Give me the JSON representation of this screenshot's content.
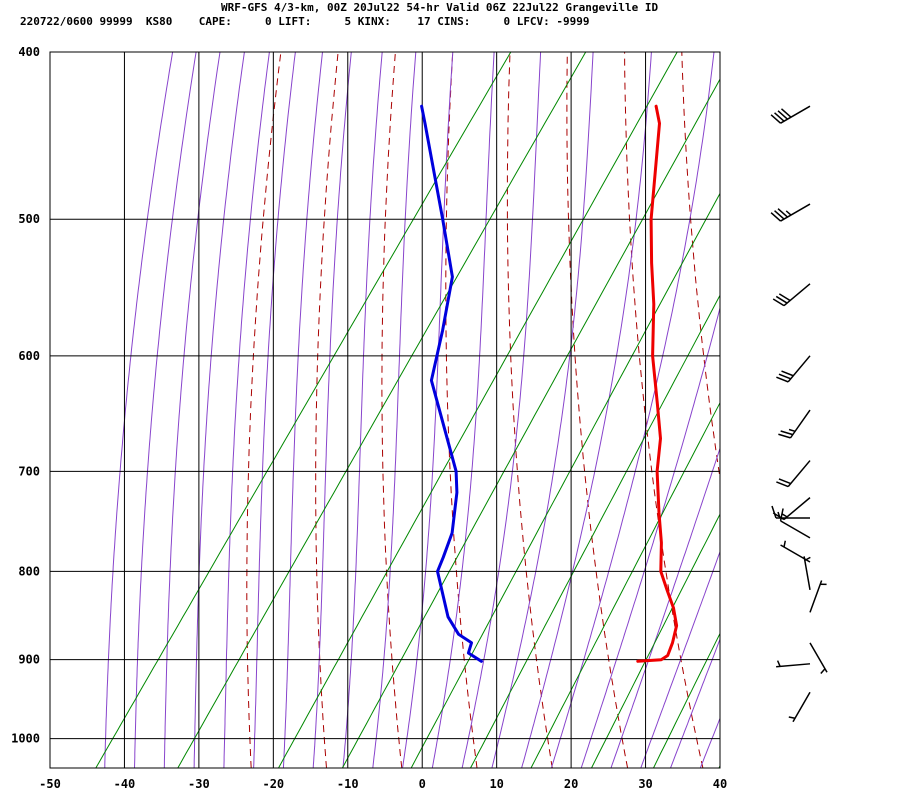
{
  "header": {
    "title": "WRF-GFS 4/3-km, 00Z 20Jul22 54-hr Valid 06Z 22Jul22 Grangeville ID",
    "stats": "220722/0600 99999  KS80    CAPE:     0 LIFT:     5 KINX:    17 CINS:     0 LFCV: -9999"
  },
  "chart_data": {
    "type": "line",
    "title": "WRF-GFS 4/3-km, 00Z 20Jul22 54-hr Valid 06Z 22Jul22 Grangeville ID",
    "xlabel": "",
    "ylabel": "",
    "x_ticks": [
      "-50",
      "-40",
      "-30",
      "-20",
      "-10",
      "0",
      "10",
      "20",
      "30",
      "40"
    ],
    "y_ticks": [
      "400",
      "500",
      "600",
      "700",
      "800",
      "900",
      "1000"
    ],
    "xlim": [
      -50,
      40
    ],
    "ylim_pressure": [
      1040,
      400
    ],
    "y_scale": "log-pressure",
    "skew": "isotherms skewed to the right with height",
    "grid": true,
    "colors": {
      "temperature": "#ee0000",
      "dewpoint": "#0000dd",
      "dry_adiabat": "#aa0000",
      "moist_adiabat": "#8844cc",
      "mixing_ratio": "#008800",
      "grid": "#000000",
      "wind": "#000000"
    },
    "series": [
      {
        "key": "temperature",
        "points": [
          {
            "p": 902,
            "t": 22.0
          },
          {
            "p": 900,
            "t": 25.0
          },
          {
            "p": 895,
            "t": 25.5
          },
          {
            "p": 880,
            "t": 25.0
          },
          {
            "p": 860,
            "t": 24.0
          },
          {
            "p": 840,
            "t": 22.0
          },
          {
            "p": 820,
            "t": 19.5
          },
          {
            "p": 800,
            "t": 17.0
          },
          {
            "p": 770,
            "t": 14.5
          },
          {
            "p": 740,
            "t": 11.5
          },
          {
            "p": 700,
            "t": 7.5
          },
          {
            "p": 670,
            "t": 5.0
          },
          {
            "p": 640,
            "t": 1.5
          },
          {
            "p": 600,
            "t": -3.5
          },
          {
            "p": 560,
            "t": -8.0
          },
          {
            "p": 530,
            "t": -12.0
          },
          {
            "p": 500,
            "t": -16.0
          },
          {
            "p": 440,
            "t": -23.5
          },
          {
            "p": 430,
            "t": -25.5
          }
        ]
      },
      {
        "key": "dewpoint",
        "points": [
          {
            "p": 902,
            "t": 1.0
          },
          {
            "p": 892,
            "t": -1.5
          },
          {
            "p": 880,
            "t": -2.0
          },
          {
            "p": 870,
            "t": -4.5
          },
          {
            "p": 850,
            "t": -7.5
          },
          {
            "p": 800,
            "t": -13.0
          },
          {
            "p": 785,
            "t": -13.5
          },
          {
            "p": 760,
            "t": -14.5
          },
          {
            "p": 720,
            "t": -17.5
          },
          {
            "p": 700,
            "t": -19.5
          },
          {
            "p": 620,
            "t": -31.0
          },
          {
            "p": 580,
            "t": -34.0
          },
          {
            "p": 540,
            "t": -37.5
          },
          {
            "p": 500,
            "t": -44.0
          },
          {
            "p": 440,
            "t": -55.0
          },
          {
            "p": 430,
            "t": -57.0
          }
        ]
      }
    ],
    "wind_barbs": [
      {
        "p": 430,
        "dir": 240,
        "speed": 40
      },
      {
        "p": 490,
        "dir": 240,
        "speed": 35
      },
      {
        "p": 545,
        "dir": 230,
        "speed": 30
      },
      {
        "p": 600,
        "dir": 220,
        "speed": 30
      },
      {
        "p": 645,
        "dir": 215,
        "speed": 25
      },
      {
        "p": 690,
        "dir": 220,
        "speed": 20
      },
      {
        "p": 725,
        "dir": 230,
        "speed": 15
      },
      {
        "p": 745,
        "dir": 270,
        "speed": 15
      },
      {
        "p": 765,
        "dir": 300,
        "speed": 10
      },
      {
        "p": 790,
        "dir": 300,
        "speed": 5
      },
      {
        "p": 820,
        "dir": 350,
        "speed": 5
      },
      {
        "p": 845,
        "dir": 20,
        "speed": 5
      },
      {
        "p": 880,
        "dir": 150,
        "speed": 5
      },
      {
        "p": 905,
        "dir": 265,
        "speed": 5
      },
      {
        "p": 940,
        "dir": 210,
        "speed": 5
      }
    ]
  }
}
